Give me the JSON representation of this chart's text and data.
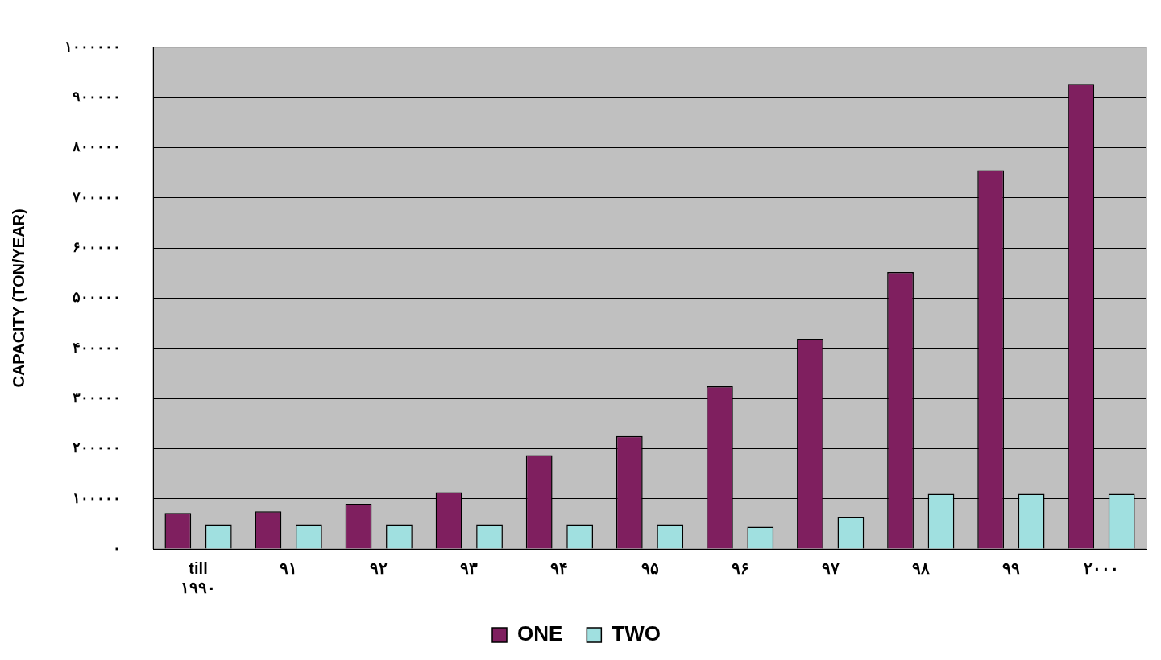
{
  "chart_data": {
    "type": "bar",
    "ylabel": "CAPACITY (TON/YEAR)",
    "categories": [
      "till ۱۹۹۰",
      "۹۱",
      "۹۲",
      "۹۳",
      "۹۴",
      "۹۵",
      "۹۶",
      "۹۷",
      "۹۸",
      "۹۹",
      "۲۰۰۰"
    ],
    "series": [
      {
        "name": "ONE",
        "color": "#7f1f5f",
        "values": [
          72000,
          75000,
          90000,
          113000,
          187000,
          225000,
          324000,
          419000,
          552000,
          755000,
          927000
        ]
      },
      {
        "name": "TWO",
        "color": "#a0e0e0",
        "values": [
          49000,
          49000,
          49000,
          49000,
          49000,
          49000,
          44000,
          64000,
          110000,
          110000,
          110000
        ]
      }
    ],
    "ylim": [
      0,
      1000000
    ],
    "yticks": [
      {
        "value": 0,
        "label": "۰"
      },
      {
        "value": 100000,
        "label": "۱۰۰۰۰۰"
      },
      {
        "value": 200000,
        "label": "۲۰۰۰۰۰"
      },
      {
        "value": 300000,
        "label": "۳۰۰۰۰۰"
      },
      {
        "value": 400000,
        "label": "۴۰۰۰۰۰"
      },
      {
        "value": 500000,
        "label": "۵۰۰۰۰۰"
      },
      {
        "value": 600000,
        "label": "۶۰۰۰۰۰"
      },
      {
        "value": 700000,
        "label": "۷۰۰۰۰۰"
      },
      {
        "value": 800000,
        "label": "۸۰۰۰۰۰"
      },
      {
        "value": 900000,
        "label": "۹۰۰۰۰۰"
      },
      {
        "value": 1000000,
        "label": "۱۰۰۰۰۰۰"
      }
    ],
    "grid": "y",
    "legend": "bottom"
  }
}
